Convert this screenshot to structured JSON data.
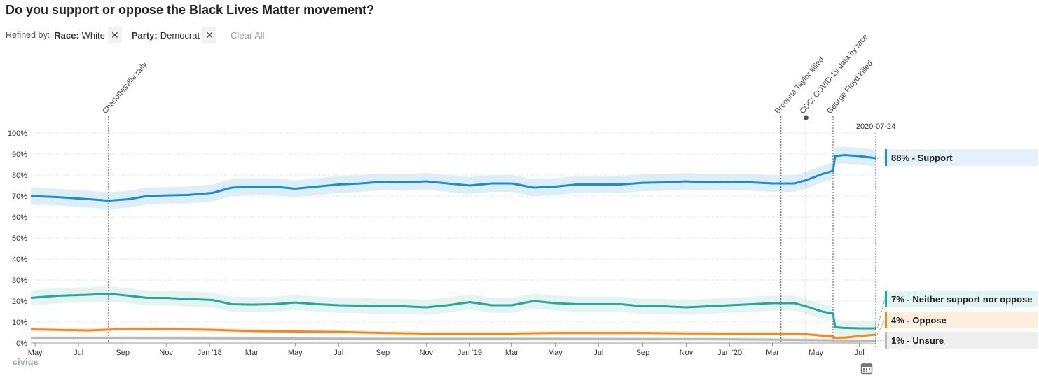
{
  "title": "Do you support or oppose the Black Lives Matter movement?",
  "filters": {
    "refined_by_label": "Refined by:",
    "items": [
      {
        "key": "Race:",
        "value": "White"
      },
      {
        "key": "Party:",
        "value": "Democrat"
      }
    ],
    "clear_all_label": "Clear All"
  },
  "logo_text": "civiqs",
  "icons": {
    "remove": "close-icon",
    "calendar": "calendar-icon"
  },
  "chart_data": {
    "type": "line",
    "ylim": [
      0,
      100
    ],
    "y_ticks": [
      "0%",
      "10%",
      "20%",
      "30%",
      "40%",
      "50%",
      "60%",
      "70%",
      "80%",
      "90%",
      "100%"
    ],
    "x_ticks": [
      {
        "label": "May",
        "date": "2017-05-01"
      },
      {
        "label": "Jul",
        "date": "2017-07-01"
      },
      {
        "label": "Sep",
        "date": "2017-09-01"
      },
      {
        "label": "Nov",
        "date": "2017-11-01"
      },
      {
        "label": "Jan '18",
        "date": "2018-01-01"
      },
      {
        "label": "Mar",
        "date": "2018-03-01"
      },
      {
        "label": "May",
        "date": "2018-05-01"
      },
      {
        "label": "Jul",
        "date": "2018-07-01"
      },
      {
        "label": "Sep",
        "date": "2018-09-01"
      },
      {
        "label": "Nov",
        "date": "2018-11-01"
      },
      {
        "label": "Jan '19",
        "date": "2019-01-01"
      },
      {
        "label": "Mar",
        "date": "2019-03-01"
      },
      {
        "label": "May",
        "date": "2019-05-01"
      },
      {
        "label": "Jul",
        "date": "2019-07-01"
      },
      {
        "label": "Sep",
        "date": "2019-09-01"
      },
      {
        "label": "Nov",
        "date": "2019-11-01"
      },
      {
        "label": "Jan '20",
        "date": "2020-01-01"
      },
      {
        "label": "Mar",
        "date": "2020-03-01"
      },
      {
        "label": "May",
        "date": "2020-05-01"
      },
      {
        "label": "Jul",
        "date": "2020-07-01"
      }
    ],
    "x_range": [
      "2017-04-25",
      "2020-07-24"
    ],
    "annotations": [
      {
        "label": "Charlottesville rally",
        "date": "2017-08-12"
      },
      {
        "label": "Breonna Taylor killed",
        "date": "2020-03-13"
      },
      {
        "label": "CDC: COVID-19 data by race",
        "date": "2020-04-17"
      },
      {
        "label": "George Floyd killed",
        "date": "2020-05-25"
      }
    ],
    "cursor": {
      "label": "2020-07-24",
      "date": "2020-07-24"
    },
    "band_halfwidth_pct": 4,
    "series": [
      {
        "name": "Support",
        "end_label": "88% - Support",
        "color": "#1f8ccd",
        "band_color": "#d6ecf8",
        "label_bg": "#e3f1fa",
        "points": [
          [
            "2017-04-25",
            70
          ],
          [
            "2017-06-01",
            69.5
          ],
          [
            "2017-07-15",
            68.5
          ],
          [
            "2017-08-12",
            67.8
          ],
          [
            "2017-09-10",
            68.5
          ],
          [
            "2017-10-05",
            70
          ],
          [
            "2017-11-01",
            70.3
          ],
          [
            "2017-12-01",
            70.5
          ],
          [
            "2018-01-05",
            71.5
          ],
          [
            "2018-02-01",
            74
          ],
          [
            "2018-03-01",
            74.5
          ],
          [
            "2018-04-01",
            74.5
          ],
          [
            "2018-05-01",
            73.5
          ],
          [
            "2018-06-01",
            74.5
          ],
          [
            "2018-07-01",
            75.5
          ],
          [
            "2018-08-01",
            76
          ],
          [
            "2018-09-01",
            76.8
          ],
          [
            "2018-10-01",
            76.5
          ],
          [
            "2018-11-01",
            77
          ],
          [
            "2018-12-01",
            76
          ],
          [
            "2019-01-01",
            75
          ],
          [
            "2019-02-01",
            76
          ],
          [
            "2019-03-01",
            76
          ],
          [
            "2019-04-01",
            74
          ],
          [
            "2019-05-01",
            74.5
          ],
          [
            "2019-06-01",
            75.5
          ],
          [
            "2019-07-01",
            75.5
          ],
          [
            "2019-08-01",
            75.5
          ],
          [
            "2019-09-01",
            76.3
          ],
          [
            "2019-10-01",
            76.5
          ],
          [
            "2019-11-01",
            77
          ],
          [
            "2019-12-01",
            76.5
          ],
          [
            "2020-01-01",
            76.7
          ],
          [
            "2020-02-01",
            76.5
          ],
          [
            "2020-03-01",
            76
          ],
          [
            "2020-03-13",
            76
          ],
          [
            "2020-04-01",
            76
          ],
          [
            "2020-04-17",
            77.5
          ],
          [
            "2020-05-10",
            80.5
          ],
          [
            "2020-05-25",
            82
          ],
          [
            "2020-05-28",
            89
          ],
          [
            "2020-06-10",
            89.5
          ],
          [
            "2020-07-01",
            89
          ],
          [
            "2020-07-24",
            88
          ]
        ]
      },
      {
        "name": "Neither support nor oppose",
        "end_label": "7% - Neither support nor oppose",
        "color": "#2aa59a",
        "band_color": "#dff2ee",
        "label_bg": "#e2f4f1",
        "points": [
          [
            "2017-04-25",
            21.5
          ],
          [
            "2017-06-01",
            22.5
          ],
          [
            "2017-07-15",
            23
          ],
          [
            "2017-08-12",
            23.5
          ],
          [
            "2017-09-10",
            22.5
          ],
          [
            "2017-10-05",
            21.5
          ],
          [
            "2017-11-01",
            21.5
          ],
          [
            "2017-12-01",
            21
          ],
          [
            "2018-01-05",
            20.5
          ],
          [
            "2018-02-01",
            18.5
          ],
          [
            "2018-03-01",
            18.3
          ],
          [
            "2018-04-01",
            18.5
          ],
          [
            "2018-05-01",
            19.3
          ],
          [
            "2018-06-01",
            18.5
          ],
          [
            "2018-07-01",
            18
          ],
          [
            "2018-08-01",
            17.8
          ],
          [
            "2018-09-01",
            17.5
          ],
          [
            "2018-10-01",
            17.5
          ],
          [
            "2018-11-01",
            17
          ],
          [
            "2018-12-01",
            18
          ],
          [
            "2019-01-01",
            19.5
          ],
          [
            "2019-02-01",
            18
          ],
          [
            "2019-03-01",
            18
          ],
          [
            "2019-04-01",
            20
          ],
          [
            "2019-05-01",
            19
          ],
          [
            "2019-06-01",
            18.5
          ],
          [
            "2019-07-01",
            18.5
          ],
          [
            "2019-08-01",
            18.5
          ],
          [
            "2019-09-01",
            17.5
          ],
          [
            "2019-10-01",
            17.5
          ],
          [
            "2019-11-01",
            17
          ],
          [
            "2019-12-01",
            17.5
          ],
          [
            "2020-01-01",
            18
          ],
          [
            "2020-02-01",
            18.5
          ],
          [
            "2020-03-01",
            19
          ],
          [
            "2020-03-13",
            19
          ],
          [
            "2020-04-01",
            19
          ],
          [
            "2020-04-17",
            17.5
          ],
          [
            "2020-05-10",
            15
          ],
          [
            "2020-05-25",
            14
          ],
          [
            "2020-05-28",
            7.5
          ],
          [
            "2020-06-10",
            7.2
          ],
          [
            "2020-07-01",
            7
          ],
          [
            "2020-07-24",
            7
          ]
        ]
      },
      {
        "name": "Oppose",
        "end_label": "4% - Oppose",
        "color": "#f08a1d",
        "band_color": "#fdebd9",
        "label_bg": "#fdeede",
        "points": [
          [
            "2017-04-25",
            6.5
          ],
          [
            "2017-07-15",
            6
          ],
          [
            "2017-09-10",
            6.8
          ],
          [
            "2017-11-01",
            6.7
          ],
          [
            "2018-01-05",
            6.3
          ],
          [
            "2018-03-01",
            5.7
          ],
          [
            "2018-05-01",
            5.5
          ],
          [
            "2018-07-01",
            5.3
          ],
          [
            "2018-09-01",
            4.8
          ],
          [
            "2018-11-01",
            4.5
          ],
          [
            "2019-01-01",
            4.5
          ],
          [
            "2019-03-01",
            4.5
          ],
          [
            "2019-05-01",
            4.8
          ],
          [
            "2019-07-01",
            4.8
          ],
          [
            "2019-09-01",
            4.8
          ],
          [
            "2019-11-01",
            4.6
          ],
          [
            "2020-01-01",
            4.5
          ],
          [
            "2020-03-13",
            4.5
          ],
          [
            "2020-04-17",
            4.2
          ],
          [
            "2020-05-10",
            3.5
          ],
          [
            "2020-05-25",
            3.2
          ],
          [
            "2020-05-28",
            2.5
          ],
          [
            "2020-06-10",
            2.6
          ],
          [
            "2020-07-01",
            3.3
          ],
          [
            "2020-07-24",
            4
          ]
        ]
      },
      {
        "name": "Unsure",
        "end_label": "1% - Unsure",
        "color": "#b8b8b8",
        "band_color": "#efefef",
        "label_bg": "#efefef",
        "points": [
          [
            "2017-04-25",
            2.5
          ],
          [
            "2017-09-01",
            2.5
          ],
          [
            "2018-01-01",
            2.3
          ],
          [
            "2018-09-01",
            2
          ],
          [
            "2019-05-01",
            2
          ],
          [
            "2020-01-01",
            1.8
          ],
          [
            "2020-05-25",
            1.3
          ],
          [
            "2020-07-24",
            1
          ]
        ]
      }
    ]
  }
}
